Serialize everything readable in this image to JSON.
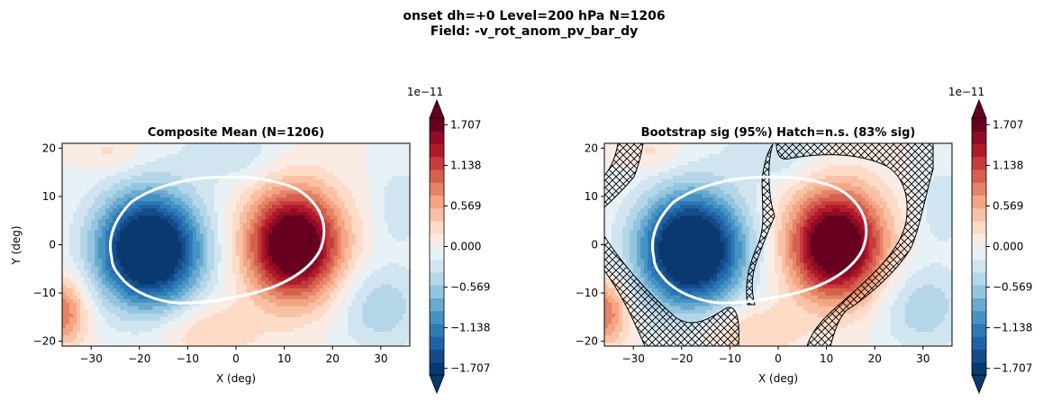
{
  "figure": {
    "title_line1": "onset  dh=+0   Level=200 hPa   N=1206",
    "title_line2": "Field: -v_rot_anom_pv_bar_dy"
  },
  "chart_data": [
    {
      "type": "heatmap",
      "title": "Composite Mean  (N=1206)",
      "xlabel": "X (deg)",
      "ylabel": "Y (deg)",
      "xlim": [
        -36,
        36
      ],
      "ylim": [
        -21,
        21
      ],
      "xticks": [
        -30,
        -20,
        -10,
        0,
        10,
        20,
        30
      ],
      "yticks": [
        -20,
        -10,
        0,
        10,
        20
      ],
      "colormap": "RdBu_r",
      "hatched": false,
      "overlay": "white-contour"
    },
    {
      "type": "heatmap",
      "title": "Bootstrap sig (95%)  Hatch=n.s.  (83% sig)",
      "xlabel": "X (deg)",
      "ylabel": "",
      "xlim": [
        -36,
        36
      ],
      "ylim": [
        -21,
        21
      ],
      "xticks": [
        -30,
        -20,
        -10,
        0,
        10,
        20,
        30
      ],
      "yticks": [
        -20,
        -10,
        0,
        10,
        20
      ],
      "colormap": "RdBu_r",
      "hatched": true,
      "significant_fraction": 0.83,
      "overlay": "white-contour"
    }
  ],
  "colorbar": {
    "exponent": "1e−11",
    "ticks": [
      1.707,
      1.138,
      0.569,
      0.0,
      -0.569,
      -1.138,
      -1.707
    ],
    "tick_labels": [
      "1.707",
      "1.138",
      "0.569",
      "0.000",
      "−0.569",
      "−1.138",
      "−1.707"
    ],
    "range": [
      -1.8,
      1.8
    ],
    "extend": "both"
  },
  "colors": {
    "levels": [
      "#0a3970",
      "#144c89",
      "#1f63a8",
      "#2f79b5",
      "#4393c3",
      "#6aa9d0",
      "#92c5de",
      "#b4d6e8",
      "#d1e5f0",
      "#e8f1f5",
      "#faece5",
      "#fddbc7",
      "#f9c0a4",
      "#f4a582",
      "#e58368",
      "#d6604d",
      "#c43c3c",
      "#b2182b",
      "#8e0d25",
      "#67001f"
    ],
    "contour": "#ffffff",
    "axes": "#000000"
  }
}
